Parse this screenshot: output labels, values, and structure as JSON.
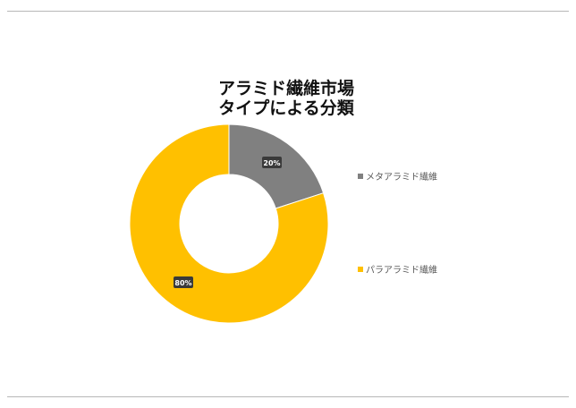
{
  "chart_data": {
    "type": "pie",
    "donut": true,
    "title_lines": [
      "アラミド繊維市場",
      "タイプによる分類"
    ],
    "series": [
      {
        "name": "メタアラミド繊維",
        "value": 20,
        "label": "20%",
        "color": "#808080"
      },
      {
        "name": "パラアラミド繊維",
        "value": 80,
        "label": "80%",
        "color": "#FFC000"
      }
    ],
    "legend_position": "right",
    "label_box_color": "#3a3a3a",
    "label_text_color": "#ffffff"
  }
}
